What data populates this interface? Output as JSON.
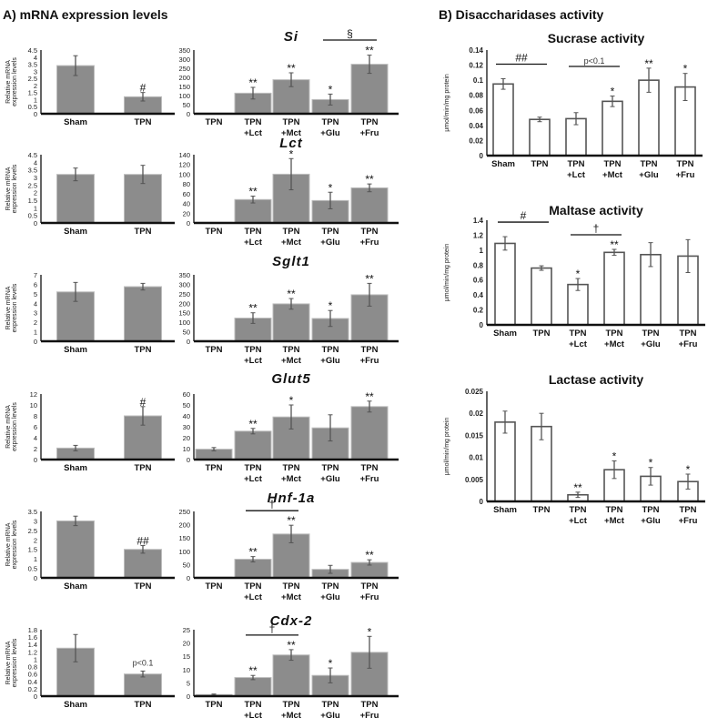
{
  "figure": {
    "panel_a_title": "A) mRNA expression levels",
    "panel_b_title": "B) Disaccharidases activity",
    "mrna_ylabel_line1": "Relative mRNA",
    "mrna_ylabel_line2": "expression levels",
    "activity_ylabel": "μmol/min/mg protein"
  },
  "chart_data": [
    {
      "id": "si-sham",
      "type": "bar",
      "title": "",
      "gene": "Si",
      "categories": [
        "Sham",
        "TPN"
      ],
      "values": [
        3.4,
        1.2
      ],
      "errors": [
        0.7,
        0.3
      ],
      "marks": [
        "",
        "#"
      ],
      "ylim": [
        0,
        4.5
      ],
      "yticks": [
        "0",
        "0.5",
        "1",
        "1.5",
        "2",
        "2.5",
        "3",
        "3.5",
        "4",
        "4.5"
      ],
      "ylabel": "Relative mRNA expression levels",
      "bar_color": "#8c8c8c"
    },
    {
      "id": "si-tpn",
      "type": "bar",
      "title": "Si",
      "categories": [
        "TPN",
        "TPN\n+Lct",
        "TPN\n+Mct",
        "TPN\n+Glu",
        "TPN\n+Fru"
      ],
      "values": [
        1,
        113,
        187,
        78,
        272
      ],
      "errors": [
        0,
        32,
        38,
        30,
        50
      ],
      "marks": [
        "",
        "**",
        "**",
        "*",
        "**"
      ],
      "ylim": [
        0,
        350
      ],
      "yticks": [
        "0",
        "50",
        "100",
        "150",
        "200",
        "250",
        "300",
        "350"
      ],
      "brackets": [
        {
          "from": 3,
          "to": 4,
          "label": "§"
        }
      ],
      "bar_color": "#8c8c8c"
    },
    {
      "id": "lct-sham",
      "type": "bar",
      "gene": "Lct",
      "categories": [
        "Sham",
        "TPN"
      ],
      "values": [
        3.2,
        3.2
      ],
      "errors": [
        0.42,
        0.6
      ],
      "marks": [
        "",
        ""
      ],
      "ylim": [
        0,
        4.5
      ],
      "yticks": [
        "0",
        "0.5",
        "1",
        "1.5",
        "2",
        "2.5",
        "3",
        "3.5",
        "4",
        "4.5"
      ],
      "ylabel": "Relative mRNA expression levels",
      "bar_color": "#8c8c8c"
    },
    {
      "id": "lct-tpn",
      "type": "bar",
      "title": "Lct",
      "categories": [
        "TPN",
        "TPN\n+Lct",
        "TPN\n+Mct",
        "TPN\n+Glu",
        "TPN\n+Fru"
      ],
      "values": [
        1,
        48,
        100,
        46,
        72
      ],
      "errors": [
        0,
        7,
        32,
        17,
        8
      ],
      "marks": [
        "",
        "**",
        "*",
        "*",
        "**"
      ],
      "ylim": [
        0,
        140
      ],
      "yticks": [
        "0",
        "20",
        "40",
        "60",
        "80",
        "100",
        "120",
        "140"
      ],
      "bar_color": "#8c8c8c"
    },
    {
      "id": "sglt1-sham",
      "type": "bar",
      "gene": "Sglt1",
      "categories": [
        "Sham",
        "TPN"
      ],
      "values": [
        5.2,
        5.75
      ],
      "errors": [
        1.0,
        0.35
      ],
      "marks": [
        "",
        ""
      ],
      "ylim": [
        0,
        7
      ],
      "yticks": [
        "0",
        "1",
        "2",
        "3",
        "4",
        "5",
        "6",
        "7"
      ],
      "ylabel": "Relative mRNA expression levels",
      "bar_color": "#8c8c8c"
    },
    {
      "id": "sglt1-tpn",
      "type": "bar",
      "title": "Sglt1",
      "categories": [
        "TPN",
        "TPN\n+Lct",
        "TPN\n+Mct",
        "TPN\n+Glu",
        "TPN\n+Fru"
      ],
      "values": [
        1,
        122,
        197,
        120,
        245
      ],
      "errors": [
        0,
        28,
        28,
        42,
        60
      ],
      "marks": [
        "",
        "**",
        "**",
        "*",
        "**"
      ],
      "ylim": [
        0,
        350
      ],
      "yticks": [
        "0",
        "50",
        "100",
        "150",
        "200",
        "250",
        "300",
        "350"
      ],
      "bar_color": "#8c8c8c"
    },
    {
      "id": "glut5-sham",
      "type": "bar",
      "gene": "Glut5",
      "categories": [
        "Sham",
        "TPN"
      ],
      "values": [
        2.1,
        8.0
      ],
      "errors": [
        0.5,
        1.7
      ],
      "marks": [
        "",
        "#"
      ],
      "ylim": [
        0,
        12
      ],
      "yticks": [
        "0",
        "2",
        "4",
        "6",
        "8",
        "10",
        "12"
      ],
      "ylabel": "Relative mRNA expression levels",
      "bar_color": "#8c8c8c"
    },
    {
      "id": "glut5-tpn",
      "type": "bar",
      "title": "Glut5",
      "categories": [
        "TPN",
        "TPN\n+Lct",
        "TPN\n+Mct",
        "TPN\n+Glu",
        "TPN\n+Fru"
      ],
      "values": [
        9.5,
        26,
        39,
        29,
        48.5
      ],
      "errors": [
        1.5,
        2.5,
        11,
        12,
        5
      ],
      "marks": [
        "",
        "**",
        "*",
        "",
        "**"
      ],
      "ylim": [
        0,
        60
      ],
      "yticks": [
        "0",
        "10",
        "20",
        "30",
        "40",
        "50",
        "60"
      ],
      "bar_color": "#8c8c8c"
    },
    {
      "id": "hnf1a-sham",
      "type": "bar",
      "gene": "Hnf-1a",
      "categories": [
        "Sham",
        "TPN"
      ],
      "values": [
        3.0,
        1.5
      ],
      "errors": [
        0.25,
        0.2
      ],
      "marks": [
        "",
        "##"
      ],
      "ylim": [
        0,
        3.5
      ],
      "yticks": [
        "0",
        "0.5",
        "1",
        "1.5",
        "2",
        "2.5",
        "3",
        "3.5"
      ],
      "ylabel": "Relative mRNA expression levels",
      "bar_color": "#8c8c8c"
    },
    {
      "id": "hnf1a-tpn",
      "type": "bar",
      "title": "Hnf-1a",
      "categories": [
        "TPN",
        "TPN\n+Lct",
        "TPN\n+Mct",
        "TPN\n+Glu",
        "TPN\n+Fru"
      ],
      "values": [
        0,
        70,
        165,
        32,
        58
      ],
      "errors": [
        0,
        10,
        33,
        15,
        10
      ],
      "marks": [
        "",
        "**",
        "**",
        "",
        "**"
      ],
      "ylim": [
        0,
        250
      ],
      "yticks": [
        "0",
        "50",
        "100",
        "150",
        "200",
        "250"
      ],
      "brackets": [
        {
          "from": 1,
          "to": 2,
          "label": "†"
        }
      ],
      "bar_color": "#8c8c8c"
    },
    {
      "id": "cdx2-sham",
      "type": "bar",
      "gene": "Cdx-2",
      "categories": [
        "Sham",
        "TPN"
      ],
      "values": [
        1.3,
        0.6
      ],
      "errors": [
        0.37,
        0.08
      ],
      "marks": [
        "",
        "p<0.1"
      ],
      "ylim": [
        0,
        1.8
      ],
      "yticks": [
        "0",
        "0.2",
        "0.4",
        "0.6",
        "0.8",
        "1",
        "1.2",
        "1.4",
        "1.6",
        "1.8"
      ],
      "ylabel": "Relative mRNA expression levels",
      "bar_color": "#8c8c8c"
    },
    {
      "id": "cdx2-tpn",
      "type": "bar",
      "title": "Cdx-2",
      "categories": [
        "TPN",
        "TPN\n+Lct",
        "TPN\n+Mct",
        "TPN\n+Glu",
        "TPN\n+Fru"
      ],
      "values": [
        0.6,
        7,
        15.5,
        7.8,
        16.5
      ],
      "errors": [
        0.2,
        0.8,
        2,
        2.8,
        6
      ],
      "marks": [
        "",
        "**",
        "**",
        "*",
        "*"
      ],
      "ylim": [
        0,
        25
      ],
      "yticks": [
        "0",
        "5",
        "10",
        "15",
        "20",
        "25"
      ],
      "brackets": [
        {
          "from": 1,
          "to": 2,
          "label": "†"
        }
      ],
      "bar_color": "#8c8c8c"
    },
    {
      "id": "sucrase",
      "type": "bar",
      "title": "Sucrase activity",
      "categories": [
        "Sham",
        "TPN",
        "TPN\n+Lct",
        "TPN\n+Mct",
        "TPN\n+Glu",
        "TPN\n+Fru"
      ],
      "values": [
        0.095,
        0.048,
        0.049,
        0.072,
        0.1,
        0.091
      ],
      "errors": [
        0.007,
        0.003,
        0.008,
        0.007,
        0.016,
        0.018
      ],
      "marks": [
        "",
        "",
        "",
        "*",
        "**",
        "*"
      ],
      "ylim": [
        0,
        0.14
      ],
      "yticks": [
        "0",
        "0.02",
        "0.04",
        "0.06",
        "0.08",
        "0.1",
        "0.12",
        "0.14"
      ],
      "ylabel": "μmol/min/mg protein",
      "brackets": [
        {
          "from": 0,
          "to": 1,
          "label": "##"
        },
        {
          "from": 2,
          "to": 3,
          "label": "p<0.1"
        }
      ],
      "bar_color": "#ffffff"
    },
    {
      "id": "maltase",
      "type": "bar",
      "title": "Maltase activity",
      "categories": [
        "Sham",
        "TPN",
        "TPN\n+Lct",
        "TPN\n+Mct",
        "TPN\n+Glu",
        "TPN\n+Fru"
      ],
      "values": [
        1.09,
        0.76,
        0.54,
        0.97,
        0.94,
        0.92
      ],
      "errors": [
        0.09,
        0.03,
        0.08,
        0.04,
        0.16,
        0.22
      ],
      "marks": [
        "",
        "",
        "*",
        "**",
        "",
        ""
      ],
      "ylim": [
        0,
        1.4
      ],
      "yticks": [
        "0",
        "0.2",
        "0.4",
        "0.6",
        "0.8",
        "1",
        "1.2",
        "1.4"
      ],
      "ylabel": "μmol/min/mg protein",
      "brackets": [
        {
          "from": 0,
          "to": 1,
          "label": "#"
        },
        {
          "from": 2,
          "to": 3,
          "label": "†"
        }
      ],
      "bar_color": "#ffffff"
    },
    {
      "id": "lactase",
      "type": "bar",
      "title": "Lactase activity",
      "categories": [
        "Sham",
        "TPN",
        "TPN\n+Lct",
        "TPN\n+Mct",
        "TPN\n+Glu",
        "TPN\n+Fru"
      ],
      "values": [
        0.018,
        0.017,
        0.0015,
        0.0072,
        0.0057,
        0.0045
      ],
      "errors": [
        0.0025,
        0.003,
        0.0006,
        0.002,
        0.002,
        0.0017
      ],
      "marks": [
        "",
        "",
        "**",
        "*",
        "*",
        "*"
      ],
      "ylim": [
        0,
        0.025
      ],
      "yticks": [
        "0",
        "0.005",
        "0.01",
        "0.015",
        "0.02",
        "0.025"
      ],
      "ylabel": "μmol/min/mg protein",
      "bar_color": "#ffffff"
    }
  ]
}
